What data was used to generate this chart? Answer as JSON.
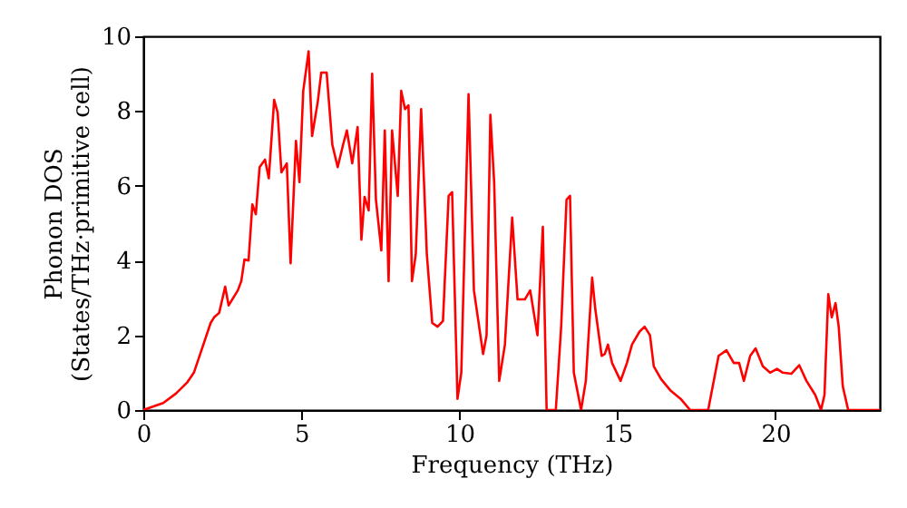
{
  "chart_data": {
    "type": "line",
    "xlabel": "Frequency (THz)",
    "ylabel": "Phonon DOS\n(States/THz·primitive cell)",
    "xlim": [
      0,
      23.3
    ],
    "ylim": [
      0,
      10
    ],
    "xticks": [
      0,
      5,
      10,
      15,
      20
    ],
    "yticks": [
      0,
      2,
      4,
      6,
      8,
      10
    ],
    "grid": false,
    "marker": "none",
    "line_style": "solid",
    "series": [
      {
        "color": "#ff0000",
        "x": [
          0,
          0.63,
          1.03,
          1.38,
          1.6,
          1.9,
          2.13,
          2.24,
          2.4,
          2.59,
          2.7,
          2.99,
          3.1,
          3.2,
          3.33,
          3.45,
          3.56,
          3.68,
          3.85,
          3.97,
          4.14,
          4.25,
          4.37,
          4.54,
          4.66,
          4.83,
          4.94,
          5.06,
          5.23,
          5.34,
          5.52,
          5.63,
          5.8,
          5.98,
          6.15,
          6.32,
          6.44,
          6.61,
          6.78,
          6.9,
          7.0,
          7.13,
          7.24,
          7.36,
          7.53,
          7.64,
          7.76,
          7.87,
          8.05,
          8.16,
          8.28,
          8.39,
          8.5,
          8.62,
          8.79,
          8.97,
          9.14,
          9.31,
          9.48,
          9.66,
          9.77,
          9.94,
          10.06,
          10.29,
          10.46,
          10.75,
          10.86,
          10.98,
          11.1,
          11.26,
          11.44,
          11.67,
          11.84,
          12.07,
          12.24,
          12.47,
          12.64,
          12.76,
          13.05,
          13.22,
          13.39,
          13.5,
          13.62,
          13.85,
          14.0,
          14.2,
          14.3,
          14.5,
          14.6,
          14.7,
          14.83,
          15.1,
          15.3,
          15.46,
          15.7,
          15.86,
          16.03,
          16.15,
          16.38,
          16.67,
          17.0,
          17.3,
          17.87,
          18.2,
          18.45,
          18.68,
          18.85,
          19.0,
          19.2,
          19.37,
          19.6,
          19.83,
          20.05,
          20.23,
          20.5,
          20.75,
          20.98,
          21.26,
          21.44,
          21.55,
          21.67,
          21.78,
          21.9,
          22.0,
          22.13,
          22.3,
          23.3
        ],
        "values": [
          0,
          0.19,
          0.44,
          0.73,
          1.0,
          1.75,
          2.33,
          2.48,
          2.6,
          3.3,
          2.8,
          3.2,
          3.45,
          4.03,
          4.0,
          5.5,
          5.24,
          6.5,
          6.7,
          6.2,
          8.3,
          7.96,
          6.36,
          6.6,
          3.93,
          7.2,
          6.1,
          8.54,
          9.6,
          7.33,
          8.25,
          9.03,
          9.03,
          7.1,
          6.5,
          7.1,
          7.48,
          6.6,
          7.57,
          4.56,
          5.7,
          5.34,
          9.0,
          5.63,
          4.27,
          7.48,
          3.45,
          7.48,
          5.73,
          8.54,
          8.05,
          8.15,
          3.45,
          4.17,
          8.05,
          4.17,
          2.33,
          2.23,
          2.38,
          5.73,
          5.83,
          0.3,
          1.0,
          8.45,
          3.2,
          1.5,
          2.0,
          7.9,
          6.1,
          0.78,
          1.75,
          5.15,
          2.96,
          2.96,
          3.2,
          2.0,
          4.9,
          0,
          0,
          2.23,
          5.63,
          5.73,
          1.0,
          0,
          0.78,
          3.54,
          2.7,
          1.45,
          1.5,
          1.75,
          1.26,
          0.78,
          1.26,
          1.75,
          2.1,
          2.23,
          2.0,
          1.17,
          0.83,
          0.53,
          0.3,
          0,
          0,
          1.45,
          1.6,
          1.26,
          1.26,
          0.78,
          1.45,
          1.65,
          1.17,
          1.0,
          1.1,
          1.0,
          0.97,
          1.2,
          0.78,
          0.4,
          0,
          0.4,
          3.1,
          2.48,
          2.86,
          2.23,
          0.63,
          0,
          0
        ]
      }
    ]
  }
}
